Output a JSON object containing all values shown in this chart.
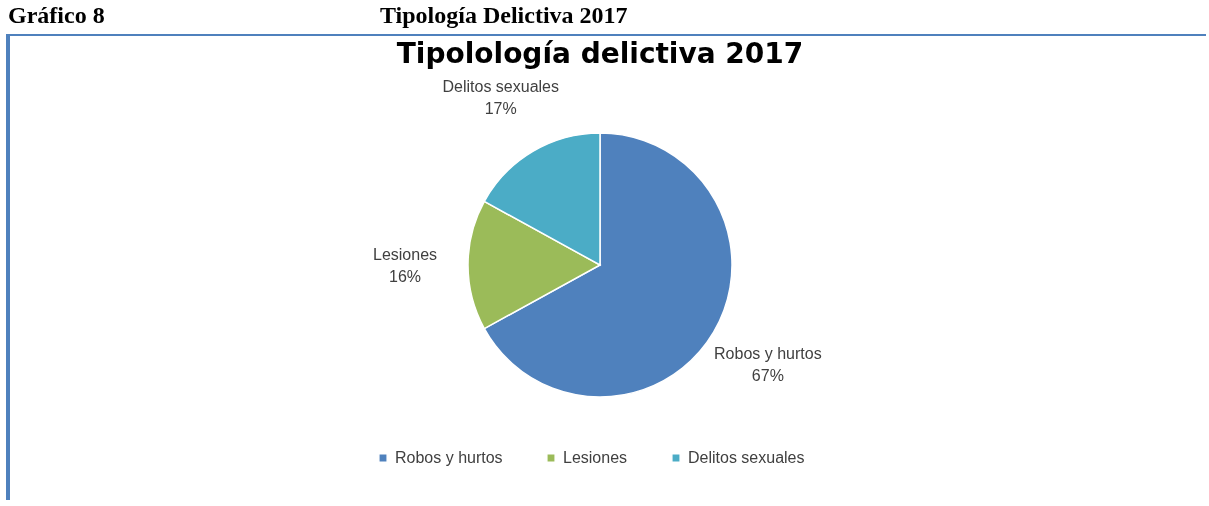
{
  "chart_data": {
    "type": "pie",
    "title": "Tipolología delictiva 2017",
    "annotations": [
      "Gráfico 8",
      "Tipología Delictiva 2017"
    ],
    "categories": [
      "Robos y hurtos",
      "Lesiones",
      "Delitos sexuales"
    ],
    "values": [
      67,
      16,
      17
    ],
    "value_labels": [
      "67%",
      "16%",
      "17%"
    ],
    "colors": [
      "#4f81bd",
      "#9bbb59",
      "#4bacc6"
    ],
    "legend": "bottom"
  }
}
